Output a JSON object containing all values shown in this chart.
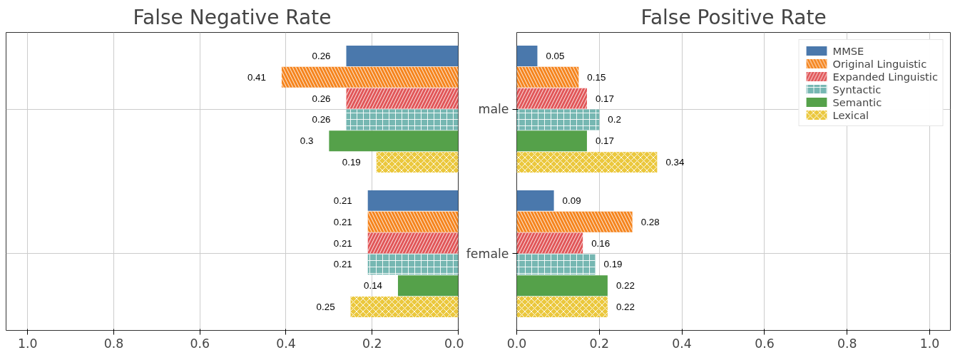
{
  "chart_data": [
    {
      "type": "bar",
      "orientation": "horizontal",
      "title": "False Negative Rate",
      "categories": [
        null,
        null
      ],
      "series": [
        {
          "color": "#4a78ac",
          "values": [
            0.26,
            0.21
          ]
        },
        {
          "color": "#f5851f",
          "values": [
            0.41,
            0.21
          ]
        },
        {
          "color": "#e15759",
          "values": [
            0.26,
            0.21
          ]
        },
        {
          "color": "#76b7b2",
          "values": [
            0.26,
            0.21
          ]
        },
        {
          "color": "#55a14a",
          "values": [
            0.3,
            0.14
          ]
        },
        {
          "color": "#ebc83e",
          "values": [
            0.19,
            0.25
          ]
        }
      ],
      "xlim": [
        1.05,
        0
      ],
      "xticks": [
        {
          "value": 1,
          "label": "1.0"
        },
        {
          "value": 0.8,
          "label": "0.8"
        },
        {
          "value": 0.6,
          "label": "0.6"
        },
        {
          "value": 0.4,
          "label": "0.4"
        },
        {
          "value": 0.2,
          "label": "0.2"
        },
        {
          "value": 0,
          "label": "0.0"
        }
      ],
      "grid": true,
      "data_labels": true,
      "legend": false,
      "tick_labels": "x"
    },
    {
      "type": "bar",
      "orientation": "horizontal",
      "title": "False Positive Rate",
      "categories": [
        "male",
        "female"
      ],
      "series": [
        {
          "name": "MMSE",
          "color": "#4a78ac",
          "values": [
            0.05,
            0.09
          ]
        },
        {
          "name": "Original Linguistic",
          "color": "#f5851f",
          "values": [
            0.15,
            0.28
          ]
        },
        {
          "name": "Expanded Linguistic",
          "color": "#e15759",
          "values": [
            0.17,
            0.16
          ]
        },
        {
          "name": "Syntactic",
          "color": "#76b7b2",
          "values": [
            0.2,
            0.19
          ]
        },
        {
          "name": "Semantic",
          "color": "#55a14a",
          "values": [
            0.17,
            0.22
          ]
        },
        {
          "name": "Lexical",
          "color": "#ebc83e",
          "values": [
            0.34,
            0.22
          ]
        }
      ],
      "xlim": [
        0,
        1.05
      ],
      "xticks": [
        {
          "value": 0,
          "label": "0.0"
        },
        {
          "value": 0.2,
          "label": "0.2"
        },
        {
          "value": 0.4,
          "label": "0.4"
        },
        {
          "value": 0.6,
          "label": "0.6"
        },
        {
          "value": 0.8,
          "label": "0.8"
        },
        {
          "value": 1,
          "label": "1.0"
        }
      ],
      "grid": true,
      "data_labels": true,
      "legend": "top right"
    }
  ]
}
